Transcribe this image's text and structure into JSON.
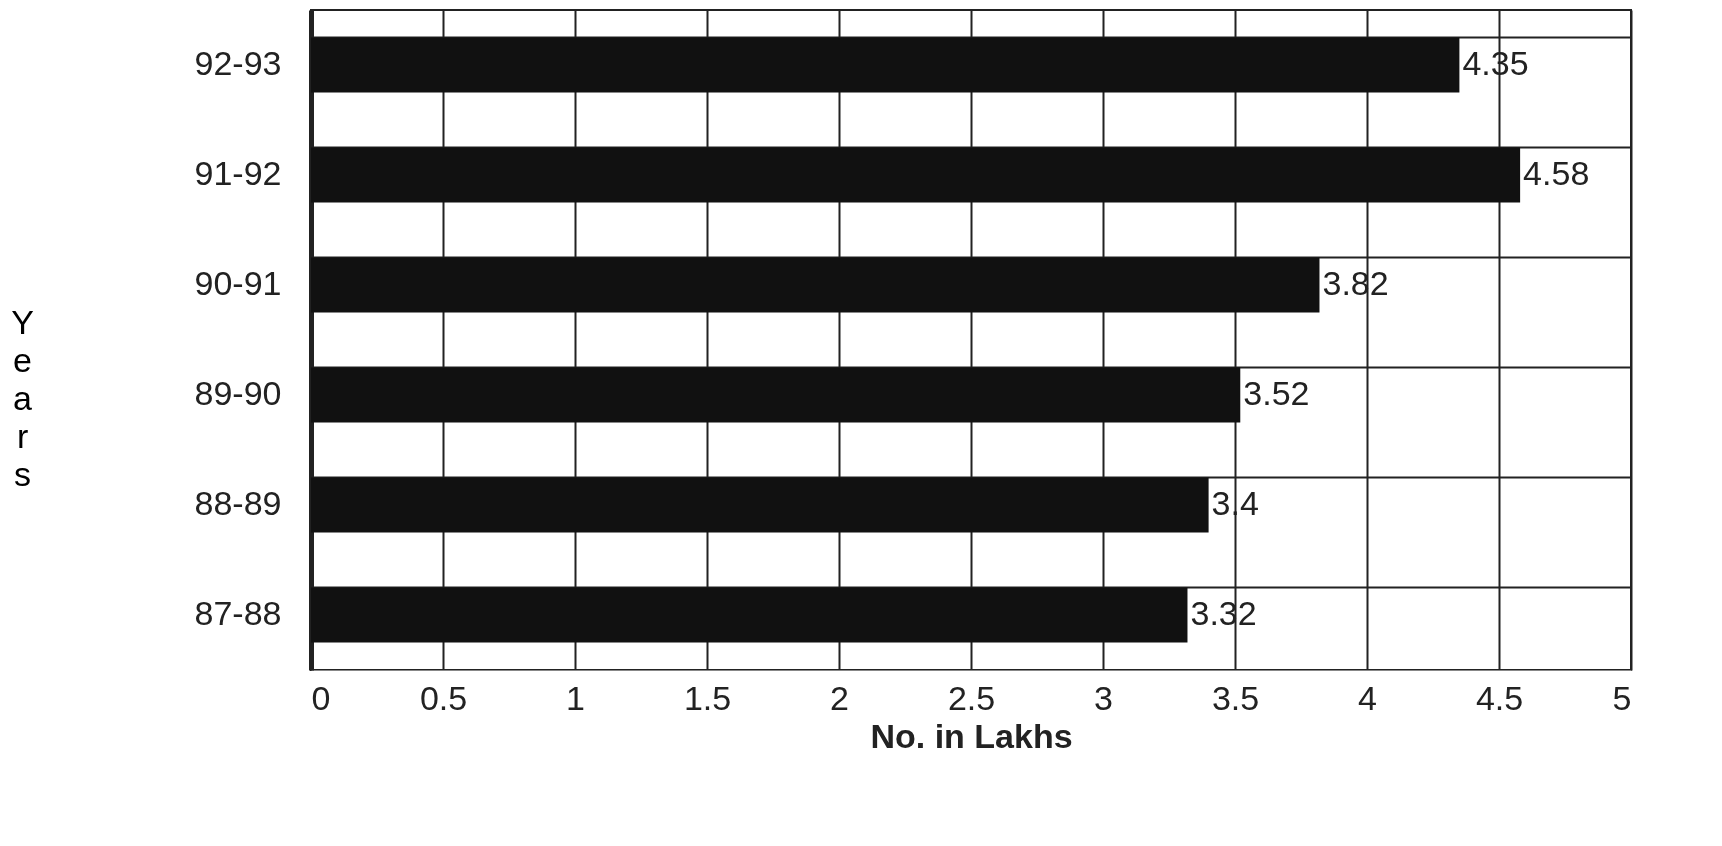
{
  "chart_data": {
    "type": "bar",
    "orientation": "horizontal",
    "xlabel": "No. in Lakhs",
    "ylabel": "Years",
    "categories": [
      "92-93",
      "91-92",
      "90-91",
      "89-90",
      "88-89",
      "87-88"
    ],
    "values": [
      4.35,
      4.58,
      3.82,
      3.52,
      3.4,
      3.32
    ],
    "color": "#111111",
    "xlim": [
      0,
      5
    ],
    "xticks": [
      0,
      0.5,
      1,
      1.5,
      2,
      2.5,
      3,
      3.5,
      4,
      4.5,
      5
    ],
    "grid": true,
    "data_labels": true
  }
}
